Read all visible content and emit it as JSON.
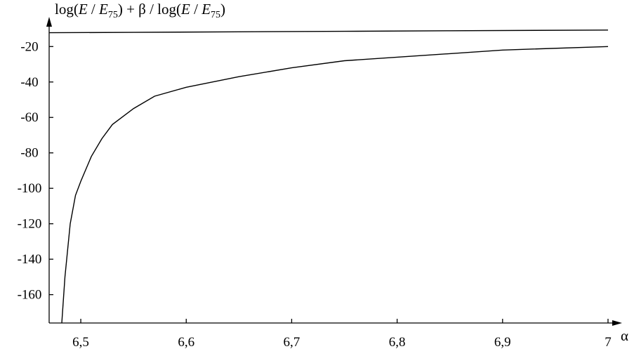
{
  "chart_data": {
    "type": "line",
    "title": "",
    "ylabel_parts": {
      "log1": "log(",
      "e1": "E",
      "sep1": " / ",
      "e2": "E",
      "sub1": "75",
      "mid": ") + β / log(",
      "e3": "E",
      "sep2": " / ",
      "e4": "E",
      "sub2": "75",
      "end": ")"
    },
    "xlabel": "α",
    "xlim": [
      6.47,
      7.0
    ],
    "ylim": [
      -176,
      -8
    ],
    "x_ticks": [
      6.5,
      6.6,
      6.7,
      6.8,
      6.9,
      7.0
    ],
    "x_tick_labels": [
      "6,5",
      "6,6",
      "6,7",
      "6,8",
      "6,9",
      "7"
    ],
    "y_ticks": [
      -20,
      -40,
      -60,
      -80,
      -100,
      -120,
      -140,
      -160
    ],
    "y_tick_labels": [
      "-20",
      "-40",
      "-60",
      "-80",
      "-100",
      "-120",
      "-140",
      "-160"
    ],
    "grid": false,
    "series": [
      {
        "x": [
          6.47,
          6.55,
          6.65,
          6.75,
          6.85,
          7.0
        ],
        "y": [
          -12.2,
          -12.0,
          -11.7,
          -11.4,
          -11.1,
          -10.7
        ]
      },
      {
        "x": [
          6.482,
          6.485,
          6.49,
          6.495,
          6.5,
          6.51,
          6.52,
          6.53,
          6.55,
          6.57,
          6.6,
          6.65,
          6.7,
          6.75,
          6.8,
          6.85,
          6.9,
          7.0
        ],
        "y": [
          -176,
          -150,
          -120,
          -104,
          -96,
          -82,
          -72,
          -64,
          -55,
          -48,
          -43,
          -37,
          -32,
          -28,
          -26,
          -24,
          -22,
          -20
        ]
      }
    ]
  }
}
